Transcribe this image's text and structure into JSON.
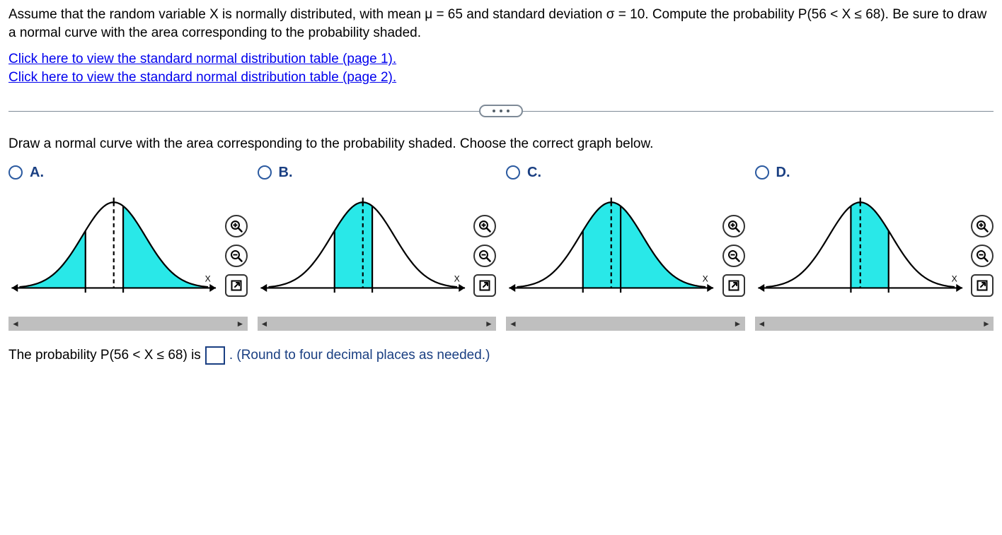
{
  "question": {
    "text": "Assume that the random variable X is normally distributed, with mean μ = 65 and standard deviation σ = 10. Compute the probability P(56 < X ≤ 68). Be sure to draw a normal curve with the area corresponding to the probability shaded."
  },
  "links": {
    "page1": "Click here to view the standard normal distribution table (page 1).",
    "page2": "Click here to view the standard normal distribution table (page 2)."
  },
  "instruction": "Draw a normal curve with the area corresponding to the probability shaded. Choose the correct graph below.",
  "choices": [
    {
      "label": "A.",
      "shade_from": -3.0,
      "shade_to": -0.9,
      "shade_tail_right": true,
      "vline1": -0.9,
      "vline2": 0.3,
      "mean_dashed": true
    },
    {
      "label": "B.",
      "shade_from": -0.9,
      "shade_to": 0.3,
      "shade_tail_right": false,
      "vline1": -0.9,
      "vline2": 0.3,
      "extra_dash_at_v2": true
    },
    {
      "label": "C.",
      "shade_from": -0.9,
      "shade_to": 3.0,
      "shade_tail_right": false,
      "vline1": -0.9,
      "vline2": 0.3,
      "mean_dashed": true
    },
    {
      "label": "D.",
      "shade_from": -0.3,
      "shade_to": 0.9,
      "shade_tail_right": false,
      "vline1": -0.3,
      "vline2": 0.9,
      "extra_dash_at_v1": true
    }
  ],
  "chart_style": {
    "fill_color": "#29e8e8",
    "stroke_color": "#000000",
    "stroke_width": 2,
    "axis_label": "X",
    "bg": "#ffffff"
  },
  "answer": {
    "prefix": "The probability P(56 < X ≤ 68) is",
    "suffix": ". (Round to four decimal places as needed.)"
  }
}
